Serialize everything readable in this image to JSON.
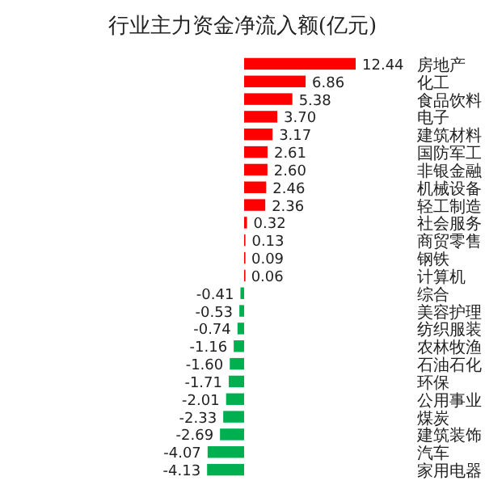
{
  "chart_data": {
    "type": "bar",
    "orientation": "horizontal",
    "title": "行业主力资金净流入额(亿元)",
    "value_labels": [
      "12.44",
      "6.86",
      "5.38",
      "3.70",
      "3.17",
      "2.61",
      "2.60",
      "2.46",
      "2.36",
      "0.32",
      "0.13",
      "0.09",
      "0.06",
      "-0.41",
      "-0.53",
      "-0.74",
      "-1.16",
      "-1.60",
      "-1.71",
      "-2.01",
      "-2.33",
      "-2.69",
      "-4.07",
      "-4.13"
    ],
    "categories": [
      "房地产",
      "化工",
      "食品饮料",
      "电子",
      "建筑材料",
      "国防军工",
      "非银金融",
      "机械设备",
      "轻工制造",
      "社会服务",
      "商贸零售",
      "钢铁",
      "计算机",
      "综合",
      "美容护理",
      "纺织服装",
      "农林牧渔",
      "石油石化",
      "环保",
      "公用事业",
      "煤炭",
      "建筑装饰",
      "汽车",
      "家用电器"
    ],
    "values": [
      12.44,
      6.86,
      5.38,
      3.7,
      3.17,
      2.61,
      2.6,
      2.46,
      2.36,
      0.32,
      0.13,
      0.09,
      0.06,
      -0.41,
      -0.53,
      -0.74,
      -1.16,
      -1.6,
      -1.71,
      -2.01,
      -2.33,
      -2.69,
      -4.07,
      -4.13
    ],
    "colors": [
      "#ff0000",
      "#ff0000",
      "#ff0000",
      "#ff0000",
      "#ff0000",
      "#ff0000",
      "#ff0000",
      "#ff0000",
      "#ff0000",
      "#ff0000",
      "#ff0000",
      "#ff0000",
      "#ff0000",
      "#00b050",
      "#00b050",
      "#00b050",
      "#00b050",
      "#00b050",
      "#00b050",
      "#00b050",
      "#00b050",
      "#00b050",
      "#00b050",
      "#00b050"
    ]
  }
}
